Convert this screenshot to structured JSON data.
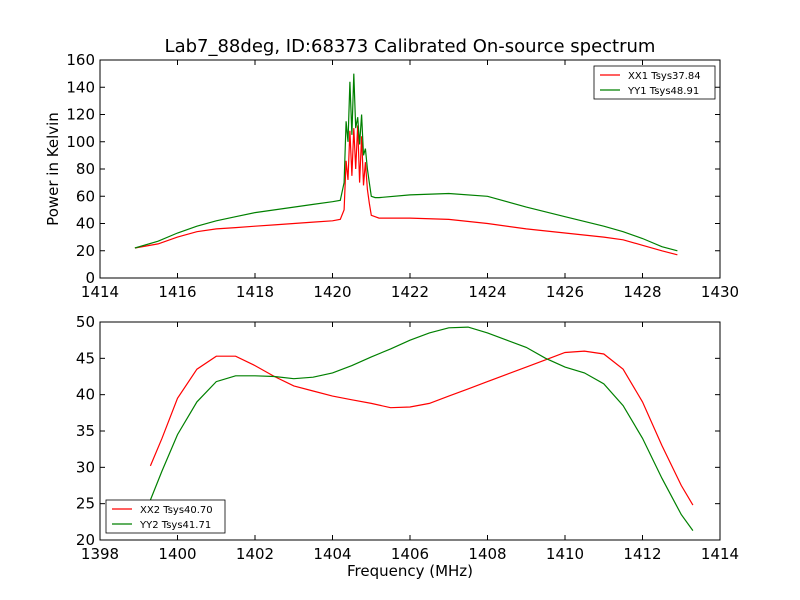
{
  "chart_data": [
    {
      "type": "line",
      "title": "Lab7_88deg, ID:68373 Calibrated On-source spectrum",
      "xlabel": "",
      "ylabel": "Power in Kelvin",
      "xlim": [
        1414,
        1430
      ],
      "ylim": [
        0,
        160
      ],
      "xticks": [
        1414,
        1416,
        1418,
        1420,
        1422,
        1424,
        1426,
        1428,
        1430
      ],
      "yticks": [
        0,
        20,
        40,
        60,
        80,
        100,
        120,
        140,
        160
      ],
      "grid": false,
      "legend": "top-right",
      "series": [
        {
          "name": "XX1 Tsys37.84",
          "color": "#ff0000",
          "x": [
            1414.9,
            1415.5,
            1416.0,
            1416.5,
            1417.0,
            1417.5,
            1418.0,
            1418.5,
            1419.0,
            1419.5,
            1420.0,
            1420.2,
            1420.3,
            1420.35,
            1420.4,
            1420.45,
            1420.5,
            1420.55,
            1420.6,
            1420.65,
            1420.7,
            1420.75,
            1420.8,
            1420.85,
            1420.9,
            1420.95,
            1421.0,
            1421.1,
            1421.2,
            1422.0,
            1423.0,
            1424.0,
            1425.0,
            1426.0,
            1427.0,
            1427.5,
            1428.0,
            1428.5,
            1428.9
          ],
          "values": [
            22,
            25,
            30,
            34,
            36,
            37,
            38,
            39,
            40,
            41,
            42,
            43,
            50,
            86,
            72,
            108,
            75,
            110,
            80,
            112,
            70,
            104,
            68,
            85,
            65,
            55,
            46,
            45,
            44,
            44,
            43,
            40,
            36,
            33,
            30,
            28,
            24,
            20,
            17
          ]
        },
        {
          "name": "YY1 Tsys48.91",
          "color": "#008000",
          "x": [
            1414.9,
            1415.5,
            1416.0,
            1416.5,
            1417.0,
            1417.5,
            1418.0,
            1418.5,
            1419.0,
            1419.5,
            1420.0,
            1420.2,
            1420.3,
            1420.35,
            1420.4,
            1420.45,
            1420.5,
            1420.55,
            1420.6,
            1420.65,
            1420.7,
            1420.75,
            1420.8,
            1420.85,
            1420.9,
            1420.95,
            1421.0,
            1421.1,
            1421.2,
            1422.0,
            1423.0,
            1424.0,
            1425.0,
            1426.0,
            1427.0,
            1427.5,
            1428.0,
            1428.5,
            1428.9
          ],
          "values": [
            22,
            27,
            33,
            38,
            42,
            45,
            48,
            50,
            52,
            54,
            56,
            57,
            70,
            115,
            100,
            144,
            105,
            150,
            110,
            118,
            98,
            120,
            90,
            95,
            80,
            70,
            60,
            59,
            59,
            61,
            62,
            60,
            52,
            45,
            38,
            34,
            29,
            23,
            20
          ]
        }
      ]
    },
    {
      "type": "line",
      "title": "",
      "xlabel": "Frequency (MHz)",
      "ylabel": "",
      "xlim": [
        1398,
        1414
      ],
      "ylim": [
        20,
        50
      ],
      "xticks": [
        1398,
        1400,
        1402,
        1404,
        1406,
        1408,
        1410,
        1412,
        1414
      ],
      "yticks": [
        20,
        25,
        30,
        35,
        40,
        45,
        50
      ],
      "grid": false,
      "legend": "bottom-left",
      "series": [
        {
          "name": "XX2 Tsys40.70",
          "color": "#ff0000",
          "x": [
            1399.3,
            1399.6,
            1400.0,
            1400.5,
            1401.0,
            1401.5,
            1402.0,
            1402.5,
            1403.0,
            1403.5,
            1404.0,
            1404.5,
            1405.0,
            1405.5,
            1406.0,
            1406.5,
            1407.0,
            1407.5,
            1408.0,
            1408.5,
            1409.0,
            1409.5,
            1410.0,
            1410.5,
            1411.0,
            1411.5,
            1412.0,
            1412.5,
            1413.0,
            1413.3
          ],
          "values": [
            30.2,
            34.0,
            39.5,
            43.5,
            45.3,
            45.3,
            44.0,
            42.5,
            41.2,
            40.5,
            39.8,
            39.3,
            38.8,
            38.2,
            38.3,
            38.8,
            39.8,
            40.8,
            41.8,
            42.8,
            43.8,
            44.8,
            45.8,
            46.0,
            45.6,
            43.5,
            39.0,
            33.0,
            27.5,
            24.8
          ]
        },
        {
          "name": "YY2 Tsys41.71",
          "color": "#008000",
          "x": [
            1399.3,
            1399.6,
            1400.0,
            1400.5,
            1401.0,
            1401.5,
            1402.0,
            1402.5,
            1403.0,
            1403.5,
            1404.0,
            1404.5,
            1405.0,
            1405.5,
            1406.0,
            1406.5,
            1407.0,
            1407.5,
            1408.0,
            1408.5,
            1409.0,
            1409.5,
            1410.0,
            1410.5,
            1411.0,
            1411.5,
            1412.0,
            1412.5,
            1413.0,
            1413.3
          ],
          "values": [
            25.5,
            29.5,
            34.5,
            39.0,
            41.8,
            42.6,
            42.6,
            42.5,
            42.2,
            42.4,
            43.0,
            44.0,
            45.2,
            46.3,
            47.5,
            48.5,
            49.2,
            49.3,
            48.5,
            47.5,
            46.5,
            45.0,
            43.8,
            43.0,
            41.5,
            38.5,
            34.0,
            28.5,
            23.5,
            21.3
          ]
        }
      ]
    }
  ]
}
